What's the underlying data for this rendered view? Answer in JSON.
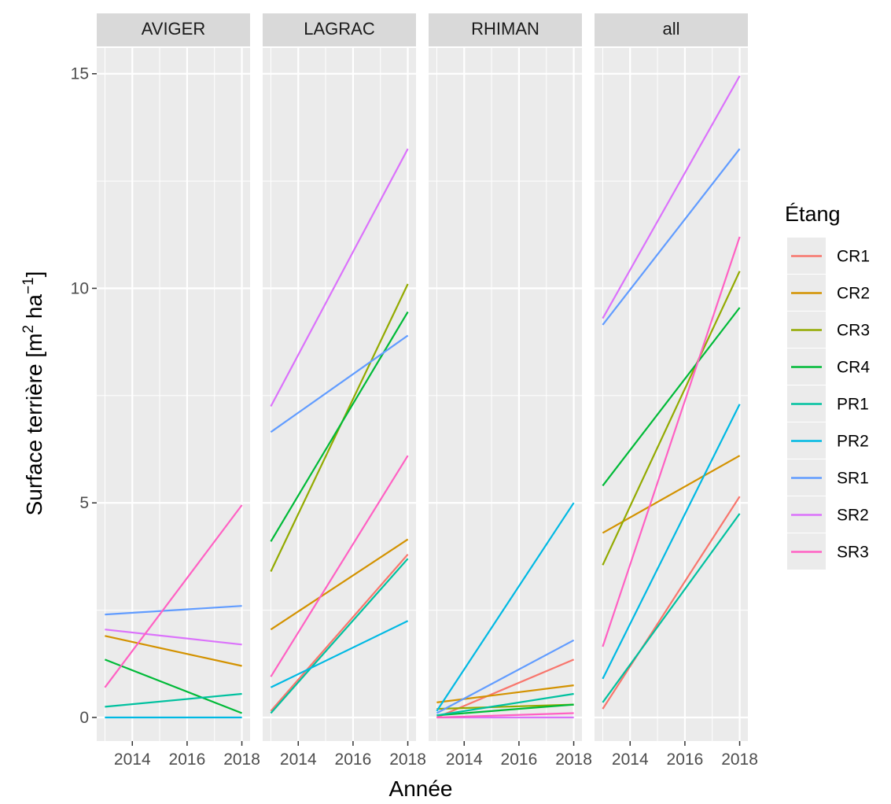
{
  "chart_data": {
    "type": "line",
    "facet_type": "small-multiples",
    "xlabel": "Année",
    "ylabel_main": "Surface terrière [m",
    "ylabel_sup1": "2",
    "ylabel_mid": " ha",
    "ylabel_sup2": "−1",
    "ylabel_end": "]",
    "xlim": [
      2012.7,
      2018.3
    ],
    "ylim": [
      -0.55,
      15.6
    ],
    "x_ticks": [
      2014,
      2016,
      2018
    ],
    "x_tick_labels": [
      "2014",
      "2016",
      "2018"
    ],
    "y_ticks": [
      0,
      5,
      10,
      15
    ],
    "y_tick_labels": [
      "0",
      "5",
      "10",
      "15"
    ],
    "grid": true,
    "legend": {
      "title": "Étang",
      "placement": "right"
    },
    "colors": {
      "CR1": "#F8766D",
      "CR2": "#D39200",
      "CR3": "#93AA00",
      "CR4": "#00BA38",
      "PR1": "#00C19F",
      "PR2": "#00B9E3",
      "SR1": "#619CFF",
      "SR2": "#DB72FB",
      "SR3": "#FF61C3"
    },
    "series_names": [
      "CR1",
      "CR2",
      "CR3",
      "CR4",
      "PR1",
      "PR2",
      "SR1",
      "SR2",
      "SR3"
    ],
    "facets": [
      {
        "label": "AVIGER",
        "series": [
          {
            "name": "CR2",
            "x": [
              2013,
              2018
            ],
            "y": [
              1.9,
              1.2
            ]
          },
          {
            "name": "CR4",
            "x": [
              2013,
              2018
            ],
            "y": [
              1.35,
              0.1
            ]
          },
          {
            "name": "PR1",
            "x": [
              2013,
              2018
            ],
            "y": [
              0.25,
              0.55
            ]
          },
          {
            "name": "PR2",
            "x": [
              2013,
              2018
            ],
            "y": [
              0.0,
              0.0
            ]
          },
          {
            "name": "SR1",
            "x": [
              2013,
              2018
            ],
            "y": [
              2.4,
              2.6
            ]
          },
          {
            "name": "SR2",
            "x": [
              2013,
              2018
            ],
            "y": [
              2.05,
              1.7
            ]
          },
          {
            "name": "SR3",
            "x": [
              2013,
              2018
            ],
            "y": [
              0.7,
              4.95
            ]
          }
        ]
      },
      {
        "label": "LAGRAC",
        "series": [
          {
            "name": "CR1",
            "x": [
              2013,
              2018
            ],
            "y": [
              0.15,
              3.8
            ]
          },
          {
            "name": "CR2",
            "x": [
              2013,
              2018
            ],
            "y": [
              2.05,
              4.15
            ]
          },
          {
            "name": "CR3",
            "x": [
              2013,
              2018
            ],
            "y": [
              3.4,
              10.1
            ]
          },
          {
            "name": "CR4",
            "x": [
              2013,
              2018
            ],
            "y": [
              4.1,
              9.45
            ]
          },
          {
            "name": "PR1",
            "x": [
              2013,
              2018
            ],
            "y": [
              0.1,
              3.7
            ]
          },
          {
            "name": "PR2",
            "x": [
              2013,
              2018
            ],
            "y": [
              0.7,
              2.25
            ]
          },
          {
            "name": "SR1",
            "x": [
              2013,
              2018
            ],
            "y": [
              6.65,
              8.9
            ]
          },
          {
            "name": "SR2",
            "x": [
              2013,
              2018
            ],
            "y": [
              7.25,
              13.25
            ]
          },
          {
            "name": "SR3",
            "x": [
              2013,
              2018
            ],
            "y": [
              0.95,
              6.1
            ]
          }
        ]
      },
      {
        "label": "RHIMAN",
        "series": [
          {
            "name": "CR1",
            "x": [
              2013,
              2018
            ],
            "y": [
              0.0,
              1.35
            ]
          },
          {
            "name": "CR2",
            "x": [
              2013,
              2018
            ],
            "y": [
              0.35,
              0.75
            ]
          },
          {
            "name": "CR3",
            "x": [
              2013,
              2018
            ],
            "y": [
              0.2,
              0.3
            ]
          },
          {
            "name": "CR4",
            "x": [
              2013,
              2018
            ],
            "y": [
              0.05,
              0.3
            ]
          },
          {
            "name": "PR1",
            "x": [
              2013,
              2018
            ],
            "y": [
              0.05,
              0.55
            ]
          },
          {
            "name": "PR2",
            "x": [
              2013,
              2018
            ],
            "y": [
              0.15,
              5.0
            ]
          },
          {
            "name": "SR1",
            "x": [
              2013,
              2018
            ],
            "y": [
              0.1,
              1.8
            ]
          },
          {
            "name": "SR2",
            "x": [
              2013,
              2018
            ],
            "y": [
              0.0,
              0.0
            ]
          },
          {
            "name": "SR3",
            "x": [
              2013,
              2018
            ],
            "y": [
              0.0,
              0.1
            ]
          }
        ]
      },
      {
        "label": "all",
        "series": [
          {
            "name": "CR1",
            "x": [
              2013,
              2018
            ],
            "y": [
              0.2,
              5.15
            ]
          },
          {
            "name": "CR2",
            "x": [
              2013,
              2018
            ],
            "y": [
              4.3,
              6.1
            ]
          },
          {
            "name": "CR3",
            "x": [
              2013,
              2018
            ],
            "y": [
              3.55,
              10.4
            ]
          },
          {
            "name": "CR4",
            "x": [
              2013,
              2018
            ],
            "y": [
              5.4,
              9.55
            ]
          },
          {
            "name": "PR1",
            "x": [
              2013,
              2018
            ],
            "y": [
              0.35,
              4.75
            ]
          },
          {
            "name": "PR2",
            "x": [
              2013,
              2018
            ],
            "y": [
              0.9,
              7.3
            ]
          },
          {
            "name": "SR1",
            "x": [
              2013,
              2018
            ],
            "y": [
              9.15,
              13.25
            ]
          },
          {
            "name": "SR2",
            "x": [
              2013,
              2018
            ],
            "y": [
              9.3,
              14.95
            ]
          },
          {
            "name": "SR3",
            "x": [
              2013,
              2018
            ],
            "y": [
              1.65,
              11.2
            ]
          }
        ]
      }
    ]
  }
}
